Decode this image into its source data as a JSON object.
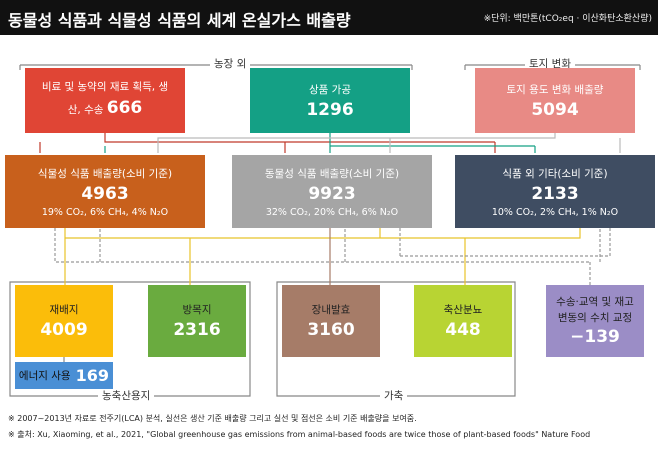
{
  "header": {
    "title": "동물성 식품과 식물성 식품의 세계 온실가스 배출량",
    "unit": "※단위: 백만톤(tCO₂eq · 이산화탄소환산량)"
  },
  "groups": {
    "off_farm": "농장 외",
    "land_change": "토지 변화",
    "farmland": "농축산용지",
    "livestock": "가축"
  },
  "sources": [
    {
      "label": "비료 및 농약의 재료 획득, 생산, 수송",
      "value": "666",
      "color": "#e04535"
    },
    {
      "label": "상품 가공",
      "value": "1296",
      "color": "#14a085"
    },
    {
      "label": "토지 용도 변화 배출량",
      "value": "5094",
      "color": "#e88a85"
    }
  ],
  "totals": [
    {
      "label": "식물성 식품 배출량(소비 기준)",
      "value": "4963",
      "gases": "19% CO₂, 6% CH₄, 4% N₂O",
      "color": "#c8601c"
    },
    {
      "label": "동물성 식품 배출량(소비 기준)",
      "value": "9923",
      "gases": "32% CO₂, 20% CH₄, 6% N₂O",
      "color": "#a5a5a5"
    },
    {
      "label": "식품 외 기타(소비 기준)",
      "value": "2133",
      "gases": "10% CO₂, 2% CH₄, 1% N₂O",
      "color": "#3f4d62"
    }
  ],
  "bottom": [
    {
      "label": "재배지",
      "value": "4009",
      "color": "#fbbd0a"
    },
    {
      "label": "방목지",
      "value": "2316",
      "color": "#6aab3f"
    },
    {
      "label": "장내발효",
      "value": "3160",
      "color": "#a67c68"
    },
    {
      "label": "축산분뇨",
      "value": "448",
      "color": "#b8d433"
    },
    {
      "label": "수송·교역 및 재고 변동의 수치 교정",
      "value": "−139",
      "color": "#9b8dc6"
    }
  ],
  "energy": {
    "label": "에너지 사용",
    "value": "169",
    "color": "#4a8fd5"
  },
  "footnotes": [
    "※ 2007~2013년 자료로 전주기(LCA) 분석, 실선은 생산 기준 배출량 그리고 실선 및 점선은 소비 기준 배출량을 보여줌.",
    "※ 출처: Xu, Xiaoming, et al., 2021, \"Global greenhouse gas emissions from animal-based foods are twice those of plant-based foods\" Nature Food"
  ]
}
